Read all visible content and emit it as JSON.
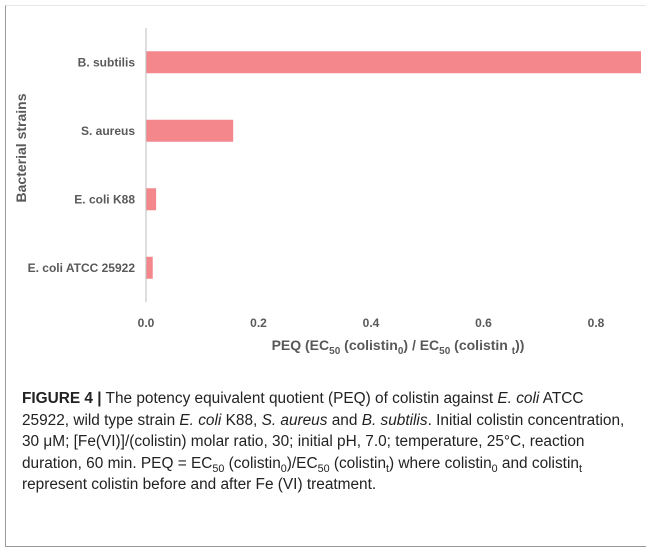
{
  "chart_data": {
    "type": "bar",
    "orientation": "horizontal",
    "ylabel": "Bacterial strains",
    "xlabel_parts": {
      "a": "PEQ (EC",
      "b": "50",
      "c": " (colistin",
      "d": "0",
      "e": ") / EC",
      "f": "50",
      "g": " (colistin ",
      "h": "t",
      "i": "))"
    },
    "categories": [
      "B. subtilis",
      "S. aureus",
      "E. coli K88",
      "E. coli ATCC 25922"
    ],
    "values": [
      0.88,
      0.155,
      0.018,
      0.012
    ],
    "xlim": [
      0,
      0.9
    ],
    "xticks": [
      0.0,
      0.2,
      0.4,
      0.6,
      0.8
    ],
    "xtick_labels": [
      "0.0",
      "0.2",
      "0.4",
      "0.6",
      "0.8"
    ],
    "bar_color": "#f4878c",
    "grid": false,
    "legend": "none"
  },
  "caption": {
    "fig_label": "FIGURE 4 |",
    "s1": " The potency equivalent quotient (PEQ) of colistin against ",
    "i1": "E. coli",
    "s2": " ATCC 25922, wild type strain ",
    "i2": "E. coli",
    "s3": " K88, ",
    "i3": "S. aureus",
    "s4": " and ",
    "i4": "B. subtilis",
    "s5": ". Initial colistin concentration, 30 μM; [Fe(VI)]/(colistin) molar ratio, 30; initial pH, 7.0; temperature, 25°C, reaction duration, 60 min. PEQ = EC",
    "sub1": "50",
    "s6": " (colistin",
    "sub2": "0",
    "s7": ")/EC",
    "sub3": "50",
    "s8": " (colistin",
    "sub4": "t",
    "s9": ") where colistin",
    "sub5": "0",
    "s10": " and colistin",
    "sub6": "t",
    "s11": " represent colistin before and after Fe (VI) treatment."
  }
}
